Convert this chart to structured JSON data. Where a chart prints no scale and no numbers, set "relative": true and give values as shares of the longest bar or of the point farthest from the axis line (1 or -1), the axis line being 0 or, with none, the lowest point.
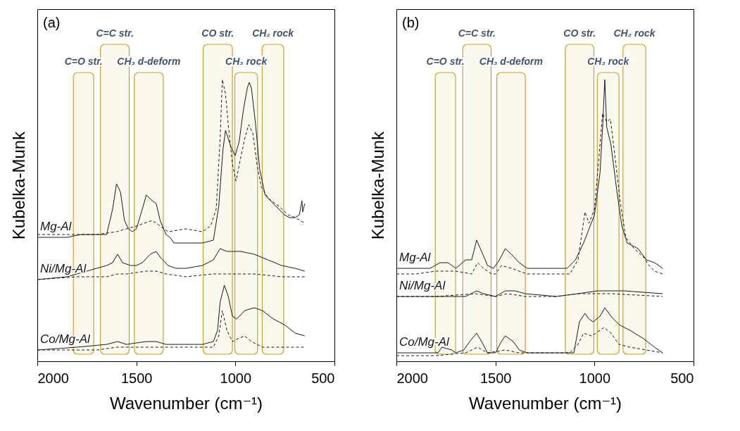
{
  "chart_data": [
    {
      "type": "line",
      "relative": true,
      "xlabel": "Wavenumber (cm⁻¹)",
      "ylabel": "Kubelka-Munk",
      "xlim": [
        2000,
        500
      ],
      "xticks": [
        2000,
        1500,
        1000,
        500
      ],
      "annotations": [
        "(a)"
      ],
      "bands": [
        {
          "axis": "x",
          "from": 1818,
          "to": 1715,
          "label": "C=O str.",
          "color": "#c9a227"
        },
        {
          "axis": "x",
          "from": 1681,
          "to": 1536,
          "label": "C=C str.",
          "color": "#c9a227"
        },
        {
          "axis": "x",
          "from": 1510,
          "to": 1364,
          "label": "CH₃ d-deform",
          "color": "#c9a227"
        },
        {
          "axis": "x",
          "from": 1163,
          "to": 1015,
          "label": "CO str.",
          "color": "#c9a227"
        },
        {
          "axis": "x",
          "from": 1003,
          "to": 888,
          "label": "CH₃ rock",
          "color": "#c9a227"
        },
        {
          "axis": "x",
          "from": 865,
          "to": 756,
          "label": "CH₂ rock",
          "color": "#c9a227"
        }
      ],
      "series": [
        {
          "name": "Mg-Al",
          "color": "#1a1a1a",
          "line_style": "solid",
          "x": [
            2000,
            1850,
            1780,
            1700,
            1650,
            1620,
            1600,
            1580,
            1560,
            1540,
            1520,
            1500,
            1470,
            1450,
            1420,
            1400,
            1380,
            1350,
            1330,
            1310,
            1250,
            1166,
            1111,
            1084,
            1063,
            1050,
            1036,
            1022,
            1001,
            981,
            960,
            940,
            930,
            919,
            898,
            877,
            850,
            795,
            753,
            726,
            698,
            677,
            664,
            660,
            650
          ],
          "values": [
            0.44,
            0.44,
            0.45,
            0.45,
            0.45,
            0.54,
            0.63,
            0.6,
            0.5,
            0.47,
            0.46,
            0.47,
            0.54,
            0.59,
            0.57,
            0.56,
            0.5,
            0.45,
            0.44,
            0.42,
            0.42,
            0.42,
            0.43,
            0.55,
            0.75,
            0.82,
            0.79,
            0.76,
            0.73,
            0.78,
            0.89,
            0.97,
            0.99,
            0.97,
            0.84,
            0.68,
            0.59,
            0.55,
            0.52,
            0.51,
            0.51,
            0.52,
            0.57,
            0.53,
            0.56
          ]
        },
        {
          "color": "#1a1a1a",
          "line_style": "dashed",
          "x": [
            2000,
            1700,
            1600,
            1500,
            1420,
            1380,
            1340,
            1249,
            1166,
            1125,
            1097,
            1077,
            1066,
            1050,
            1036,
            1015,
            997,
            974,
            953,
            933,
            912,
            891,
            870,
            836,
            781,
            733,
            698,
            650
          ],
          "values": [
            0.45,
            0.45,
            0.46,
            0.48,
            0.5,
            0.48,
            0.46,
            0.47,
            0.46,
            0.48,
            0.54,
            0.79,
            1.0,
            0.95,
            0.84,
            0.7,
            0.64,
            0.72,
            0.79,
            0.84,
            0.81,
            0.7,
            0.62,
            0.58,
            0.55,
            0.52,
            0.51,
            0.49
          ]
        },
        {
          "name": "Ni/Mg-Al",
          "color": "#1a1a1a",
          "line_style": "solid",
          "x": [
            2000,
            1850,
            1750,
            1650,
            1620,
            1595,
            1570,
            1530,
            1500,
            1470,
            1430,
            1400,
            1380,
            1340,
            1300,
            1250,
            1166,
            1111,
            1077,
            1043,
            974,
            905,
            836,
            767,
            698,
            650
          ],
          "values": [
            0.29,
            0.3,
            0.32,
            0.34,
            0.35,
            0.38,
            0.35,
            0.34,
            0.34,
            0.35,
            0.38,
            0.39,
            0.37,
            0.34,
            0.33,
            0.33,
            0.34,
            0.36,
            0.4,
            0.39,
            0.39,
            0.38,
            0.36,
            0.34,
            0.33,
            0.32
          ]
        },
        {
          "color": "#1a1a1a",
          "line_style": "dashed",
          "x": [
            2000,
            1800,
            1650,
            1595,
            1550,
            1450,
            1400,
            1350,
            1250,
            1111,
            1043,
            905,
            767,
            650
          ],
          "values": [
            0.29,
            0.3,
            0.3,
            0.31,
            0.31,
            0.32,
            0.32,
            0.31,
            0.3,
            0.31,
            0.31,
            0.31,
            0.3,
            0.3
          ]
        },
        {
          "name": "Co/Mg-Al",
          "color": "#1a1a1a",
          "line_style": "solid",
          "x": [
            2000,
            1800,
            1650,
            1595,
            1550,
            1450,
            1400,
            1350,
            1250,
            1166,
            1111,
            1090,
            1077,
            1056,
            1036,
            1015,
            994,
            953,
            905,
            864,
            808,
            753,
            698,
            650
          ],
          "values": [
            0.04,
            0.05,
            0.06,
            0.07,
            0.06,
            0.07,
            0.07,
            0.06,
            0.06,
            0.06,
            0.07,
            0.11,
            0.21,
            0.27,
            0.23,
            0.16,
            0.15,
            0.18,
            0.19,
            0.18,
            0.15,
            0.13,
            0.1,
            0.09
          ]
        },
        {
          "color": "#1a1a1a",
          "line_style": "dashed",
          "x": [
            2000,
            1700,
            1600,
            1450,
            1350,
            1166,
            1111,
            1084,
            1066,
            1043,
            1015,
            988,
            953,
            919,
            864,
            650
          ],
          "values": [
            0.04,
            0.04,
            0.05,
            0.05,
            0.05,
            0.05,
            0.05,
            0.09,
            0.18,
            0.11,
            0.07,
            0.08,
            0.09,
            0.07,
            0.05,
            0.05
          ]
        }
      ]
    },
    {
      "type": "line",
      "relative": true,
      "xlabel": "Wavenumber (cm⁻¹)",
      "ylabel": "Kubelka-Munk",
      "xlim": [
        2000,
        500
      ],
      "xticks": [
        2000,
        1500,
        1000,
        500
      ],
      "annotations": [
        "(b)"
      ],
      "bands": [
        {
          "axis": "x",
          "from": 1804,
          "to": 1701,
          "label": "C=O str.",
          "color": "#c9a227"
        },
        {
          "axis": "x",
          "from": 1665,
          "to": 1522,
          "label": "C=C str.",
          "color": "#c9a227"
        },
        {
          "axis": "x",
          "from": 1493,
          "to": 1349,
          "label": "CH₃ d-deform",
          "color": "#c9a227"
        },
        {
          "axis": "x",
          "from": 1147,
          "to": 1003,
          "label": "CO str.",
          "color": "#c9a227"
        },
        {
          "axis": "x",
          "from": 986,
          "to": 876,
          "label": "CH₃ rock",
          "color": "#c9a227"
        },
        {
          "axis": "x",
          "from": 856,
          "to": 741,
          "label": "CH₂ rock",
          "color": "#c9a227"
        }
      ],
      "series": [
        {
          "name": "Mg-Al",
          "color": "#1a1a1a",
          "line_style": "solid",
          "x": [
            2000,
            1900,
            1830,
            1780,
            1740,
            1700,
            1650,
            1620,
            1595,
            1570,
            1540,
            1510,
            1480,
            1450,
            1420,
            1380,
            1340,
            1248,
            1138,
            1096,
            1055,
            1000,
            972,
            959,
            948,
            938,
            917,
            890,
            862,
            835,
            780,
            738,
            697,
            656
          ],
          "values": [
            0.33,
            0.33,
            0.33,
            0.35,
            0.35,
            0.33,
            0.36,
            0.36,
            0.43,
            0.39,
            0.34,
            0.33,
            0.36,
            0.4,
            0.38,
            0.35,
            0.33,
            0.33,
            0.33,
            0.36,
            0.42,
            0.52,
            0.67,
            0.83,
            1.0,
            0.83,
            0.77,
            0.62,
            0.48,
            0.42,
            0.4,
            0.36,
            0.35,
            0.33
          ]
        },
        {
          "color": "#1a1a1a",
          "line_style": "dashed",
          "x": [
            2000,
            1900,
            1800,
            1700,
            1620,
            1590,
            1560,
            1520,
            1500,
            1470,
            1420,
            1380,
            1340,
            1193,
            1124,
            1083,
            1048,
            1028,
            1000,
            979,
            959,
            938,
            920,
            897,
            869,
            842,
            800,
            752,
            725,
            697,
            656
          ],
          "values": [
            0.31,
            0.31,
            0.32,
            0.32,
            0.31,
            0.35,
            0.33,
            0.31,
            0.31,
            0.34,
            0.33,
            0.32,
            0.31,
            0.31,
            0.31,
            0.36,
            0.53,
            0.49,
            0.54,
            0.71,
            0.88,
            0.85,
            0.86,
            0.73,
            0.56,
            0.44,
            0.4,
            0.37,
            0.34,
            0.32,
            0.31
          ]
        },
        {
          "name": "Ni/Mg-Al",
          "color": "#1a1a1a",
          "line_style": "solid",
          "x": [
            2000,
            1800,
            1650,
            1595,
            1560,
            1500,
            1450,
            1400,
            1350,
            1193,
            1083,
            986,
            849,
            656
          ],
          "values": [
            0.23,
            0.23,
            0.23,
            0.25,
            0.24,
            0.23,
            0.25,
            0.25,
            0.24,
            0.23,
            0.24,
            0.25,
            0.25,
            0.24
          ]
        },
        {
          "color": "#1a1a1a",
          "line_style": "dashed",
          "x": [
            2000,
            1800,
            1600,
            1500,
            1440,
            1350,
            1193,
            1083,
            917,
            656
          ],
          "values": [
            0.23,
            0.23,
            0.24,
            0.23,
            0.24,
            0.23,
            0.23,
            0.24,
            0.24,
            0.23
          ]
        },
        {
          "name": "Co/Mg-Al",
          "color": "#1a1a1a",
          "line_style": "solid",
          "x": [
            2000,
            1850,
            1790,
            1770,
            1720,
            1700,
            1660,
            1630,
            1595,
            1570,
            1540,
            1500,
            1470,
            1450,
            1410,
            1380,
            1340,
            1193,
            1124,
            1104,
            1076,
            1048,
            1028,
            1007,
            972,
            948,
            917,
            876,
            821,
            752,
            697,
            656
          ],
          "values": [
            0.03,
            0.03,
            0.03,
            0.05,
            0.04,
            0.03,
            0.04,
            0.07,
            0.1,
            0.07,
            0.03,
            0.03,
            0.07,
            0.09,
            0.07,
            0.04,
            0.03,
            0.03,
            0.03,
            0.03,
            0.14,
            0.17,
            0.15,
            0.14,
            0.16,
            0.19,
            0.16,
            0.13,
            0.11,
            0.08,
            0.05,
            0.03
          ]
        },
        {
          "color": "#1a1a1a",
          "line_style": "dashed",
          "x": [
            2000,
            1800,
            1650,
            1590,
            1540,
            1450,
            1380,
            1193,
            1124,
            1083,
            1055,
            1014,
            972,
            952,
            917,
            876,
            821,
            738,
            656
          ],
          "values": [
            0.02,
            0.02,
            0.03,
            0.05,
            0.03,
            0.04,
            0.03,
            0.03,
            0.03,
            0.06,
            0.1,
            0.09,
            0.11,
            0.12,
            0.1,
            0.06,
            0.05,
            0.04,
            0.03
          ]
        }
      ]
    }
  ]
}
